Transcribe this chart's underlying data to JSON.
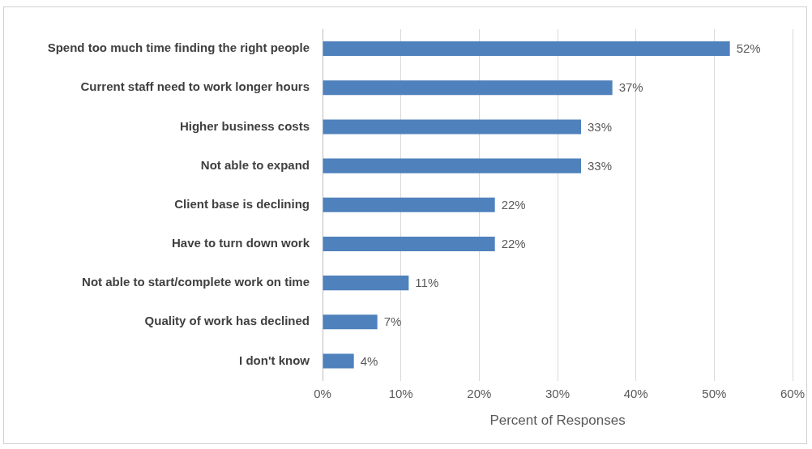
{
  "chart_data": {
    "type": "bar",
    "orientation": "horizontal",
    "xlabel": "Percent of Responses",
    "categories": [
      "Spend too much time finding the right people",
      "Current staff need to work longer hours",
      "Higher business costs",
      "Not able to expand",
      "Client base is declining",
      "Have to turn down work",
      "Not able to start/complete work on time",
      "Quality of work has declined",
      "I don't know"
    ],
    "values": [
      52,
      37,
      33,
      33,
      22,
      22,
      11,
      7,
      4
    ],
    "value_labels": [
      "52%",
      "37%",
      "33%",
      "33%",
      "22%",
      "22%",
      "11%",
      "7%",
      "4%"
    ],
    "color": "#4f81bd",
    "xlim": [
      0,
      60
    ],
    "xticks": [
      {
        "value": 0,
        "label": "0%"
      },
      {
        "value": 10,
        "label": "10%"
      },
      {
        "value": 20,
        "label": "20%"
      },
      {
        "value": 30,
        "label": "30%"
      },
      {
        "value": 40,
        "label": "40%"
      },
      {
        "value": 50,
        "label": "50%"
      },
      {
        "value": 60,
        "label": "60%"
      }
    ],
    "grid": "x",
    "legend": false
  }
}
